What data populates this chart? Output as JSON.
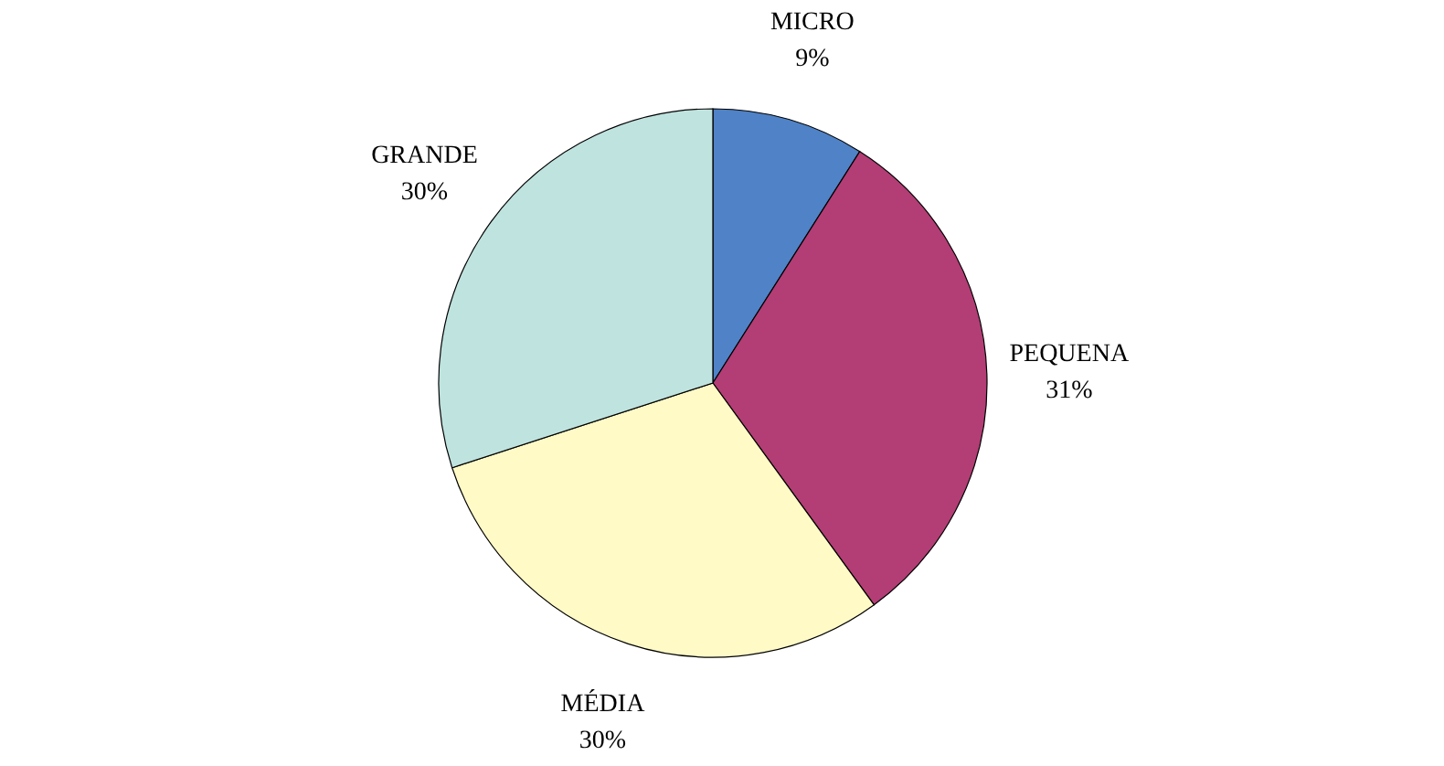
{
  "chart_data": {
    "type": "pie",
    "categories": [
      "MICRO",
      "PEQUENA",
      "MÉDIA",
      "GRANDE"
    ],
    "values": [
      9,
      31,
      30,
      30
    ],
    "value_labels": [
      "9%",
      "31%",
      "30%",
      "30%"
    ],
    "colors": [
      "#4f82c6",
      "#b33d75",
      "#fffac6",
      "#bfe3df"
    ],
    "legend": false
  }
}
